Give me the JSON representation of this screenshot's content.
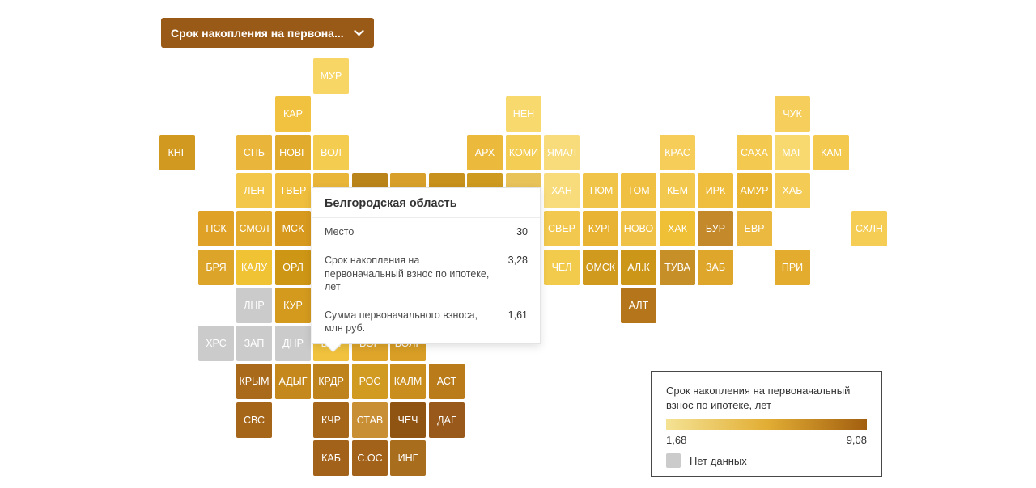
{
  "dropdown": {
    "label": "Срок накопления на первона...",
    "icon": "chevron-down-icon"
  },
  "tooltip": {
    "title": "Белгородская область",
    "rows": [
      {
        "label": "Место",
        "value": "30"
      },
      {
        "label": "Срок накопления на первоначальный взнос по ипотеке, лет",
        "value": "3,28"
      },
      {
        "label": "Сумма первоначального взноса, млн руб.",
        "value": "1,61"
      }
    ]
  },
  "legend": {
    "title": "Срок накопления на первоначальный взнос по ипотеке, лет",
    "min": "1,68",
    "max": "9,08",
    "no_data_label": "Нет данных",
    "no_data_color": "#CBCBCB",
    "gradient": [
      "#F4E294",
      "#E2AE34",
      "#A25E0F"
    ]
  },
  "chart_data": {
    "type": "heatmap",
    "variant": "tile-cartogram-russia-regions",
    "title": "Срок накопления на первоначальный взнос по ипотеке, лет",
    "scale": {
      "min": 1.68,
      "max": 9.08,
      "no_data_label": "Нет данных"
    },
    "highlighted_region": {
      "name": "Белгородская область",
      "place": 30,
      "saving_period_years": "3,28",
      "down_payment_mln_rub": "1,61"
    },
    "no_data_regions": [
      "ЛНР",
      "ХРС",
      "ЗАП",
      "ДНР"
    ],
    "legend_position": "bottom-right"
  },
  "map": {
    "tiles": [
      {
        "label": "МУР",
        "col": 4,
        "row": 0,
        "color": "#F7D665"
      },
      {
        "label": "КАР",
        "col": 3,
        "row": 1,
        "color": "#F1C23F"
      },
      {
        "label": "НЕН",
        "col": 9,
        "row": 1,
        "color": "#F8D96E"
      },
      {
        "label": "ЧУК",
        "col": 16,
        "row": 1,
        "color": "#F6CE5B"
      },
      {
        "label": "КНГ",
        "col": 0,
        "row": 2,
        "color": "#D1991F"
      },
      {
        "label": "СПБ",
        "col": 2,
        "row": 2,
        "color": "#E9B53A"
      },
      {
        "label": "НОВГ",
        "col": 3,
        "row": 2,
        "color": "#E1AB2D"
      },
      {
        "label": "ВОЛ",
        "col": 4,
        "row": 2,
        "color": "#F4CC50"
      },
      {
        "label": "АРХ",
        "col": 8,
        "row": 2,
        "color": "#EBB93B"
      },
      {
        "label": "КОМИ",
        "col": 9,
        "row": 2,
        "color": "#F4CD55"
      },
      {
        "label": "ЯМАЛ",
        "col": 10,
        "row": 2,
        "color": "#F8DC7C"
      },
      {
        "label": "КРАС",
        "col": 13,
        "row": 2,
        "color": "#F6CD59"
      },
      {
        "label": "САХА",
        "col": 15,
        "row": 2,
        "color": "#F4C94F"
      },
      {
        "label": "МАГ",
        "col": 16,
        "row": 2,
        "color": "#F8D96F"
      },
      {
        "label": "КАМ",
        "col": 17,
        "row": 2,
        "color": "#F4C94F"
      },
      {
        "label": "ЛЕН",
        "col": 2,
        "row": 3,
        "color": "#F2C74A"
      },
      {
        "label": "ТВЕР",
        "col": 3,
        "row": 3,
        "color": "#EFBE3D"
      },
      {
        "label": "ХАН",
        "col": 10,
        "row": 3,
        "color": "#F8DC7C"
      },
      {
        "label": "ТЮМ",
        "col": 11,
        "row": 3,
        "color": "#F0C449"
      },
      {
        "label": "ТОМ",
        "col": 12,
        "row": 3,
        "color": "#EFC041"
      },
      {
        "label": "КЕМ",
        "col": 13,
        "row": 3,
        "color": "#F2C94E"
      },
      {
        "label": "ИРК",
        "col": 14,
        "row": 3,
        "color": "#EFBE3E"
      },
      {
        "label": "АМУР",
        "col": 15,
        "row": 3,
        "color": "#E9B634"
      },
      {
        "label": "ХАБ",
        "col": 16,
        "row": 3,
        "color": "#F4CC55"
      },
      {
        "label": "ПСК",
        "col": 1,
        "row": 4,
        "color": "#DFA227"
      },
      {
        "label": "СМОЛ",
        "col": 2,
        "row": 4,
        "color": "#E3AC2F"
      },
      {
        "label": "МСК",
        "col": 3,
        "row": 4,
        "color": "#D89A1E"
      },
      {
        "label": "СВЕР",
        "col": 10,
        "row": 4,
        "color": "#F2C94E"
      },
      {
        "label": "КУРГ",
        "col": 11,
        "row": 4,
        "color": "#E8B232"
      },
      {
        "label": "НОВО",
        "col": 12,
        "row": 4,
        "color": "#EFC247"
      },
      {
        "label": "ХАК",
        "col": 13,
        "row": 4,
        "color": "#EFC035"
      },
      {
        "label": "БУР",
        "col": 14,
        "row": 4,
        "color": "#C3892A"
      },
      {
        "label": "ЕВР",
        "col": 15,
        "row": 4,
        "color": "#EBB93F"
      },
      {
        "label": "СХЛН",
        "col": 18,
        "row": 4,
        "color": "#F5CD54"
      },
      {
        "label": "БРЯ",
        "col": 1,
        "row": 5,
        "color": "#DCA428"
      },
      {
        "label": "КАЛУ",
        "col": 2,
        "row": 5,
        "color": "#F0C335"
      },
      {
        "label": "ОРЛ",
        "col": 3,
        "row": 5,
        "color": "#CE9615"
      },
      {
        "label": "ЧЕЛ",
        "col": 10,
        "row": 5,
        "color": "#F2CB4C"
      },
      {
        "label": "ОМСК",
        "col": 11,
        "row": 5,
        "color": "#D09A1F"
      },
      {
        "label": "АЛ.К",
        "col": 12,
        "row": 5,
        "color": "#CC9619"
      },
      {
        "label": "ТУВА",
        "col": 13,
        "row": 5,
        "color": "#C68F28"
      },
      {
        "label": "ЗАБ",
        "col": 14,
        "row": 5,
        "color": "#DEA62B"
      },
      {
        "label": "ПРИ",
        "col": 16,
        "row": 5,
        "color": "#E3AC2F"
      },
      {
        "label": "ЛНР",
        "col": 2,
        "row": 6,
        "color": "#CBCBCB",
        "no_data": true
      },
      {
        "label": "КУР",
        "col": 3,
        "row": 6,
        "color": "#D49A1E"
      },
      {
        "label": "АЛТ",
        "col": 12,
        "row": 6,
        "color": "#B5761B"
      },
      {
        "label": "ХРС",
        "col": 1,
        "row": 7,
        "color": "#CBCBCB",
        "no_data": true
      },
      {
        "label": "ЗАП",
        "col": 2,
        "row": 7,
        "color": "#CBCBCB",
        "no_data": true
      },
      {
        "label": "ДНР",
        "col": 3,
        "row": 7,
        "color": "#CBCBCB",
        "no_data": true
      },
      {
        "label": "БЕЛ",
        "col": 4,
        "row": 7,
        "color": "#F0C23E"
      },
      {
        "label": "ВОР",
        "col": 5,
        "row": 7,
        "color": "#DFA52B"
      },
      {
        "label": "ВОЛГ",
        "col": 6,
        "row": 7,
        "color": "#D89E25"
      },
      {
        "label": "КРЫМ",
        "col": 2,
        "row": 8,
        "color": "#A96A1B"
      },
      {
        "label": "АДЫГ",
        "col": 3,
        "row": 8,
        "color": "#C4881C"
      },
      {
        "label": "КРДР",
        "col": 4,
        "row": 8,
        "color": "#BF831E"
      },
      {
        "label": "РОС",
        "col": 5,
        "row": 8,
        "color": "#D19A20"
      },
      {
        "label": "КАЛМ",
        "col": 6,
        "row": 8,
        "color": "#C98E1E"
      },
      {
        "label": "АСТ",
        "col": 7,
        "row": 8,
        "color": "#BA7C1A"
      },
      {
        "label": "СВС",
        "col": 2,
        "row": 9,
        "color": "#A5661A"
      },
      {
        "label": "КЧР",
        "col": 4,
        "row": 9,
        "color": "#A5661A"
      },
      {
        "label": "СТАВ",
        "col": 5,
        "row": 9,
        "color": "#C98F35"
      },
      {
        "label": "ЧЕЧ",
        "col": 6,
        "row": 9,
        "color": "#8F5312"
      },
      {
        "label": "ДАГ",
        "col": 7,
        "row": 9,
        "color": "#99591A"
      },
      {
        "label": "КАБ",
        "col": 4,
        "row": 10,
        "color": "#A3621A"
      },
      {
        "label": "С.ОС",
        "col": 5,
        "row": 10,
        "color": "#A3621A"
      },
      {
        "label": "ИНГ",
        "col": 6,
        "row": 10,
        "color": "#A96E1D"
      }
    ],
    "hidden_tiles": [
      {
        "label": "",
        "col": 4,
        "row": 3,
        "color": "#E9B63A"
      },
      {
        "label": "",
        "col": 5,
        "row": 3,
        "color": "#BA841B"
      },
      {
        "label": "",
        "col": 6,
        "row": 3,
        "color": "#D8A02A"
      },
      {
        "label": "",
        "col": 7,
        "row": 3,
        "color": "#C8901C"
      },
      {
        "label": "",
        "col": 8,
        "row": 3,
        "color": "#CE9A20"
      },
      {
        "label": "",
        "col": 9,
        "row": 3,
        "color": "#E8C35A"
      },
      {
        "label": "",
        "col": 4,
        "row": 6,
        "color": "#DFA82B"
      },
      {
        "label": "",
        "col": 5,
        "row": 6,
        "color": "#A86E12"
      },
      {
        "label": "",
        "col": 6,
        "row": 6,
        "color": "#CE9A1E"
      },
      {
        "label": "",
        "col": 7,
        "row": 6,
        "color": "#C89420"
      },
      {
        "label": "",
        "col": 8,
        "row": 6,
        "color": "#D9A62C"
      },
      {
        "label": "",
        "col": 9,
        "row": 6,
        "color": "#E8BC49"
      }
    ]
  }
}
